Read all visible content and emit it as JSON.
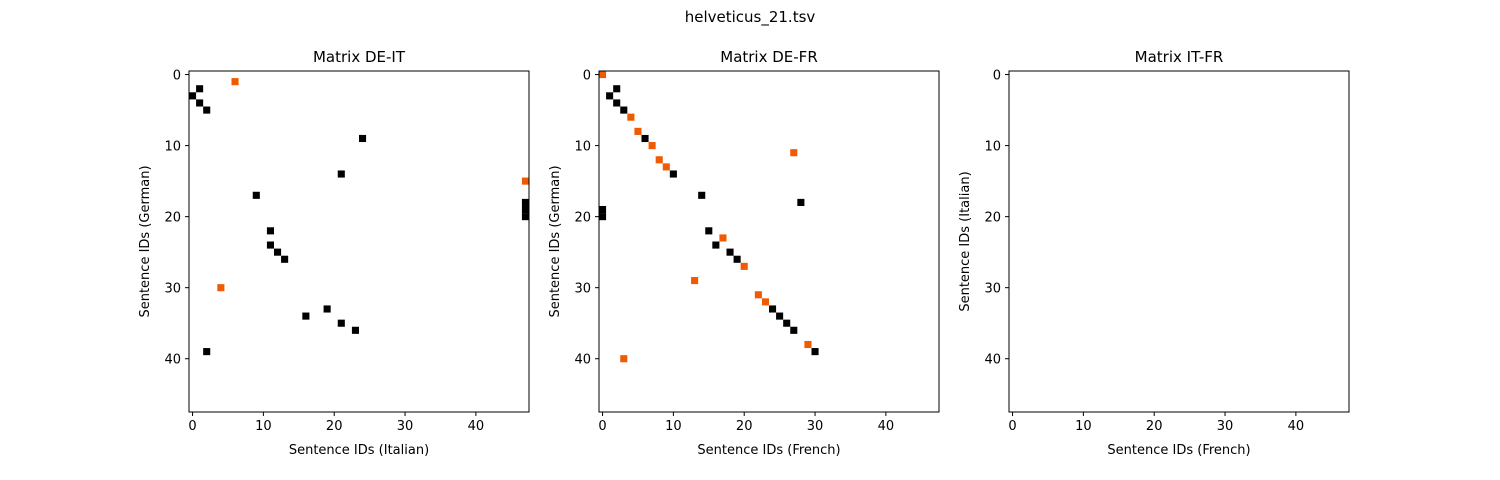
{
  "figure": {
    "suptitle": "helveticus_21.tsv"
  },
  "colors": {
    "black_mark": "#000000",
    "orange_mark": "#f05a00",
    "frame": "#000000",
    "background": "#ffffff"
  },
  "chart_data": [
    {
      "type": "heatmap",
      "title": "Matrix DE-IT",
      "xlabel": "Sentence IDs (Italian)",
      "ylabel": "Sentence IDs (German)",
      "xlim": [
        -0.5,
        47.5
      ],
      "ylim": [
        47.5,
        -0.5
      ],
      "xticks": [
        0,
        10,
        20,
        30,
        40
      ],
      "yticks": [
        0,
        10,
        20,
        30,
        40
      ],
      "grid": false,
      "series": [
        {
          "color": "#000000",
          "points": [
            [
              1,
              2
            ],
            [
              0,
              3
            ],
            [
              1,
              4
            ],
            [
              2,
              5
            ],
            [
              24,
              9
            ],
            [
              21,
              14
            ],
            [
              9,
              17
            ],
            [
              47,
              18
            ],
            [
              47,
              19
            ],
            [
              47,
              20
            ],
            [
              11,
              22
            ],
            [
              11,
              24
            ],
            [
              12,
              25
            ],
            [
              13,
              26
            ],
            [
              19,
              33
            ],
            [
              16,
              34
            ],
            [
              21,
              35
            ],
            [
              23,
              36
            ],
            [
              2,
              39
            ]
          ]
        },
        {
          "color": "#f05a00",
          "points": [
            [
              6,
              1
            ],
            [
              47,
              15
            ],
            [
              4,
              30
            ]
          ]
        }
      ]
    },
    {
      "type": "heatmap",
      "title": "Matrix DE-FR",
      "xlabel": "Sentence IDs (French)",
      "ylabel": "Sentence IDs (German)",
      "xlim": [
        -0.5,
        47.5
      ],
      "ylim": [
        47.5,
        -0.5
      ],
      "xticks": [
        0,
        10,
        20,
        30,
        40
      ],
      "yticks": [
        0,
        10,
        20,
        30,
        40
      ],
      "grid": false,
      "series": [
        {
          "color": "#000000",
          "points": [
            [
              2,
              2
            ],
            [
              1,
              3
            ],
            [
              2,
              4
            ],
            [
              3,
              5
            ],
            [
              6,
              9
            ],
            [
              10,
              14
            ],
            [
              14,
              17
            ],
            [
              28,
              18
            ],
            [
              0,
              19
            ],
            [
              0,
              20
            ],
            [
              15,
              22
            ],
            [
              16,
              24
            ],
            [
              18,
              25
            ],
            [
              19,
              26
            ],
            [
              24,
              33
            ],
            [
              25,
              34
            ],
            [
              26,
              35
            ],
            [
              27,
              36
            ],
            [
              30,
              39
            ]
          ]
        },
        {
          "color": "#f05a00",
          "points": [
            [
              0,
              0
            ],
            [
              4,
              6
            ],
            [
              5,
              8
            ],
            [
              7,
              10
            ],
            [
              27,
              11
            ],
            [
              8,
              12
            ],
            [
              9,
              13
            ],
            [
              17,
              23
            ],
            [
              20,
              27
            ],
            [
              13,
              29
            ],
            [
              22,
              31
            ],
            [
              23,
              32
            ],
            [
              29,
              38
            ],
            [
              3,
              40
            ]
          ]
        }
      ]
    },
    {
      "type": "heatmap",
      "title": "Matrix IT-FR",
      "xlabel": "Sentence IDs (French)",
      "ylabel": "Sentence IDs (Italian)",
      "xlim": [
        -0.5,
        47.5
      ],
      "ylim": [
        47.5,
        -0.5
      ],
      "xticks": [
        0,
        10,
        20,
        30,
        40
      ],
      "yticks": [
        0,
        10,
        20,
        30,
        40
      ],
      "grid": false,
      "series": []
    }
  ]
}
